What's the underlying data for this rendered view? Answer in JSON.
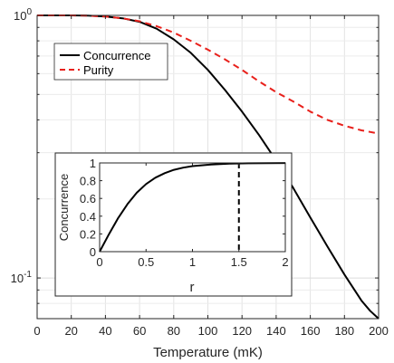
{
  "chart_data": [
    {
      "type": "line",
      "xlabel": "Temperature (mK)",
      "ylabel": "",
      "xlim": [
        0,
        200
      ],
      "ylim": [
        0.07,
        1
      ],
      "yscale": "log",
      "grid": true,
      "legend_position": "top-left",
      "x_ticks": [
        "0",
        "20",
        "40",
        "60",
        "80",
        "100",
        "120",
        "140",
        "160",
        "180",
        "200"
      ],
      "y_ticks": [
        {
          "value": 1,
          "base": "10",
          "exp": "0"
        },
        {
          "value": 0.1,
          "base": "10",
          "exp": "-1"
        }
      ],
      "series": [
        {
          "name": "Concurrence",
          "color": "#000000",
          "style": "solid",
          "x": [
            0,
            10,
            20,
            30,
            40,
            50,
            60,
            70,
            80,
            90,
            100,
            110,
            120,
            130,
            140,
            150,
            160,
            170,
            180,
            190,
            195,
            200
          ],
          "y": [
            1.0,
            1.0,
            1.0,
            0.998,
            0.99,
            0.975,
            0.945,
            0.89,
            0.81,
            0.72,
            0.62,
            0.52,
            0.43,
            0.35,
            0.28,
            0.22,
            0.17,
            0.132,
            0.103,
            0.082,
            0.075,
            0.07
          ]
        },
        {
          "name": "Purity",
          "color": "#e8201b",
          "style": "dashed",
          "x": [
            0,
            10,
            20,
            30,
            40,
            50,
            60,
            70,
            80,
            90,
            100,
            110,
            120,
            130,
            140,
            150,
            160,
            170,
            180,
            190,
            200
          ],
          "y": [
            1.0,
            1.0,
            1.0,
            0.998,
            0.99,
            0.975,
            0.95,
            0.91,
            0.86,
            0.8,
            0.74,
            0.68,
            0.62,
            0.56,
            0.51,
            0.47,
            0.43,
            0.4,
            0.38,
            0.365,
            0.355
          ]
        }
      ]
    },
    {
      "type": "line",
      "xlabel": "r",
      "ylabel": "Concurrence",
      "xlim": [
        0,
        2
      ],
      "ylim": [
        0,
        1
      ],
      "grid": false,
      "x_ticks": [
        "0",
        "0.5",
        "1",
        "1.5",
        "2"
      ],
      "y_ticks": [
        "0",
        "0.2",
        "0.4",
        "0.6",
        "0.8",
        "1"
      ],
      "vline": {
        "x": 1.5,
        "color": "#000000",
        "style": "dashed"
      },
      "series": [
        {
          "color": "#000000",
          "style": "solid",
          "x": [
            0,
            0.1,
            0.2,
            0.3,
            0.4,
            0.5,
            0.6,
            0.7,
            0.8,
            0.9,
            1.0,
            1.2,
            1.4,
            1.6,
            1.8,
            2.0
          ],
          "y": [
            0,
            0.197,
            0.38,
            0.537,
            0.664,
            0.762,
            0.834,
            0.885,
            0.922,
            0.947,
            0.964,
            0.983,
            0.992,
            0.996,
            0.998,
            0.999
          ]
        }
      ]
    }
  ]
}
